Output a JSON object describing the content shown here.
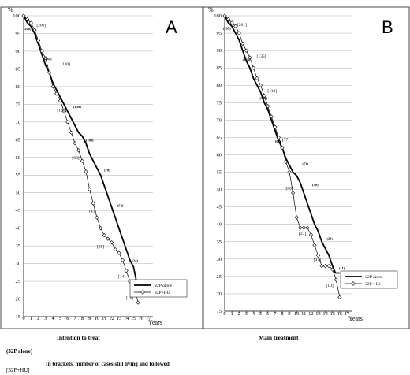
{
  "chart_data": [
    {
      "type": "line",
      "panel": "A",
      "caption": "Intention to treat",
      "ylabel": "%",
      "xlabel": "Years",
      "ylim": [
        15,
        100
      ],
      "xlim": [
        0,
        17
      ],
      "yticks": [
        "15",
        "20",
        "25",
        "30",
        "35",
        "40",
        "45",
        "50",
        "55",
        "60",
        "65",
        "70",
        "75",
        "80",
        "85",
        "90",
        "95",
        "100"
      ],
      "xticks": [
        "0",
        "1",
        "2",
        "3",
        "4",
        "5",
        "6",
        "7",
        "8",
        "9",
        "10",
        "11",
        "12",
        "13",
        "14",
        "15",
        "16",
        "17"
      ],
      "legend": {
        "placement": "bottom-right",
        "entries": [
          "32P alone",
          "32P+HU"
        ]
      },
      "series": [
        {
          "name": "32P alone",
          "style": "thick",
          "x": [
            0,
            0.5,
            1,
            1.5,
            2,
            2.5,
            3,
            3.5,
            4,
            4.5,
            5,
            5.5,
            6,
            6.5,
            7,
            7.5,
            8,
            8.5,
            9,
            9.5,
            10,
            10.5,
            11,
            11.5,
            12,
            12.5,
            13,
            13.5,
            14,
            14.5,
            15,
            15.3,
            15.6
          ],
          "y": [
            100,
            98,
            97,
            95,
            92,
            89,
            86,
            84,
            81,
            79,
            77,
            75,
            73,
            71,
            69,
            67,
            66,
            64,
            61,
            59,
            57,
            55,
            52,
            49,
            46,
            43,
            40,
            37,
            34,
            31,
            29,
            26,
            21
          ]
        },
        {
          "name": "32P+HU",
          "style": "open-diamond",
          "x": [
            0,
            0.5,
            1,
            1.5,
            2,
            2.5,
            3,
            3.5,
            4,
            4.5,
            5,
            5.5,
            6,
            6.5,
            7,
            7.5,
            8,
            8.5,
            9,
            9.5,
            10,
            10.5,
            11,
            11.5,
            12,
            12.5,
            13,
            13.5,
            14,
            14.5,
            15,
            15.3,
            15.6
          ],
          "y": [
            100,
            99,
            98,
            96,
            93,
            90,
            88,
            84,
            80,
            78,
            76,
            73,
            70,
            67,
            64,
            62,
            59,
            56,
            51,
            47,
            43,
            40,
            38,
            37,
            36,
            34,
            33,
            31,
            28,
            25,
            23,
            22,
            19
          ]
        }
      ],
      "annotations_at_risk_32P_alone": [
        {
          "x": 0.5,
          "y": 96,
          "text": "(208)"
        },
        {
          "x": 3.3,
          "y": 87.5,
          "text": "(184)"
        },
        {
          "x": 7.3,
          "y": 74,
          "text": "(139)"
        },
        {
          "x": 9.0,
          "y": 64.5,
          "text": "(108)"
        },
        {
          "x": 11.4,
          "y": 56,
          "text": "(78)"
        },
        {
          "x": 13.2,
          "y": 46,
          "text": "(54)"
        },
        {
          "x": 15.2,
          "y": 30.5,
          "text": "(24)"
        },
        {
          "x": 16.1,
          "y": 21.5,
          "text": "(11)"
        }
      ],
      "annotations_at_risk_32P_HU": [
        {
          "x": 2.4,
          "y": 97,
          "text": "[200]"
        },
        {
          "x": 5.7,
          "y": 86,
          "text": "[130]"
        },
        {
          "x": 5.2,
          "y": 73,
          "text": "[103]"
        },
        {
          "x": 7.1,
          "y": 59.5,
          "text": "[68]"
        },
        {
          "x": 9.4,
          "y": 44.5,
          "text": "[43]"
        },
        {
          "x": 10.5,
          "y": 34.5,
          "text": "[25]"
        },
        {
          "x": 13.4,
          "y": 26,
          "text": "[14]"
        },
        {
          "x": 14.5,
          "y": 20,
          "text": "[10]"
        }
      ]
    },
    {
      "type": "line",
      "panel": "B",
      "caption": "Main treatment",
      "ylabel": "%",
      "xlabel": "Years",
      "ylim": [
        15,
        100
      ],
      "xlim": [
        0,
        17
      ],
      "yticks": [
        "15",
        "20",
        "25",
        "30",
        "35",
        "40",
        "45",
        "50",
        "55",
        "60",
        "65",
        "70",
        "75",
        "80",
        "85",
        "90",
        "95",
        "100"
      ],
      "xticks": [
        "0",
        "1",
        "2",
        "3",
        "4",
        "5",
        "6",
        "7",
        "8",
        "9",
        "10",
        "11",
        "12",
        "13",
        "14",
        "15",
        "16",
        "17"
      ],
      "legend": {
        "placement": "bottom-right",
        "entries": [
          "32P alone",
          "32P+HU"
        ]
      },
      "series": [
        {
          "name": "32P alone",
          "style": "thick",
          "x": [
            0,
            0.5,
            1,
            1.5,
            2,
            2.5,
            3,
            3.5,
            4,
            4.5,
            5,
            5.5,
            6,
            6.5,
            7,
            7.5,
            8,
            8.5,
            9,
            9.5,
            10,
            10.5,
            11,
            11.5,
            12,
            12.5,
            13,
            13.5,
            14,
            14.5,
            15,
            15.4,
            16
          ],
          "y": [
            100,
            98,
            97,
            95,
            93,
            90,
            87,
            85,
            82,
            80,
            78,
            75,
            73,
            70,
            67,
            64,
            62,
            59,
            57,
            55,
            54,
            52,
            49,
            46,
            43,
            40,
            38,
            35,
            33,
            31,
            28,
            26,
            26
          ]
        },
        {
          "name": "32P+HU",
          "style": "open-diamond",
          "x": [
            0,
            0.5,
            1,
            1.5,
            2,
            2.5,
            3,
            3.5,
            4,
            4.5,
            5,
            5.5,
            6,
            6.5,
            7,
            7.5,
            8,
            8.5,
            9,
            9.5,
            10,
            10.5,
            11,
            11.5,
            12,
            12.5,
            13,
            13.5,
            14,
            14.5,
            15,
            15.5,
            16
          ],
          "y": [
            100,
            99,
            98,
            97,
            95,
            92,
            90,
            88,
            85,
            82,
            80,
            77,
            74,
            71,
            68,
            65,
            62,
            58,
            55,
            49,
            42,
            39,
            39,
            39,
            37,
            34,
            31,
            28,
            28,
            28,
            27,
            24,
            19
          ]
        }
      ],
      "annotations_at_risk_32P_alone": [
        {
          "x": 0.3,
          "y": 96,
          "text": "(207)"
        },
        {
          "x": 3.0,
          "y": 87,
          "text": "(169)"
        },
        {
          "x": 5.4,
          "y": 76,
          "text": "(132)"
        },
        {
          "x": 7.4,
          "y": 63.5,
          "text": "(99)"
        },
        {
          "x": 11.2,
          "y": 57,
          "text": "(73)"
        },
        {
          "x": 12.6,
          "y": 51,
          "text": "(50)"
        },
        {
          "x": 14.6,
          "y": 35.5,
          "text": "(23)"
        },
        {
          "x": 16.3,
          "y": 27,
          "text": "(11)"
        }
      ],
      "annotations_at_risk_32P_HU": [
        {
          "x": 2.4,
          "y": 97,
          "text": "[201]"
        },
        {
          "x": 5.1,
          "y": 88,
          "text": "[135]"
        },
        {
          "x": 6.6,
          "y": 78,
          "text": "[110]"
        },
        {
          "x": 8.5,
          "y": 64,
          "text": "[77]"
        },
        {
          "x": 9.0,
          "y": 50,
          "text": "[40]"
        },
        {
          "x": 10.8,
          "y": 37,
          "text": "[27]"
        },
        {
          "x": 12.9,
          "y": 29.5,
          "text": "[15]"
        },
        {
          "x": 14.6,
          "y": 22,
          "text": "[10]"
        }
      ]
    }
  ],
  "footer": {
    "line1_label": "(32P alone)",
    "note": "In brackets, number of cases still living and followed",
    "line2_label": "[32P+HU]"
  }
}
